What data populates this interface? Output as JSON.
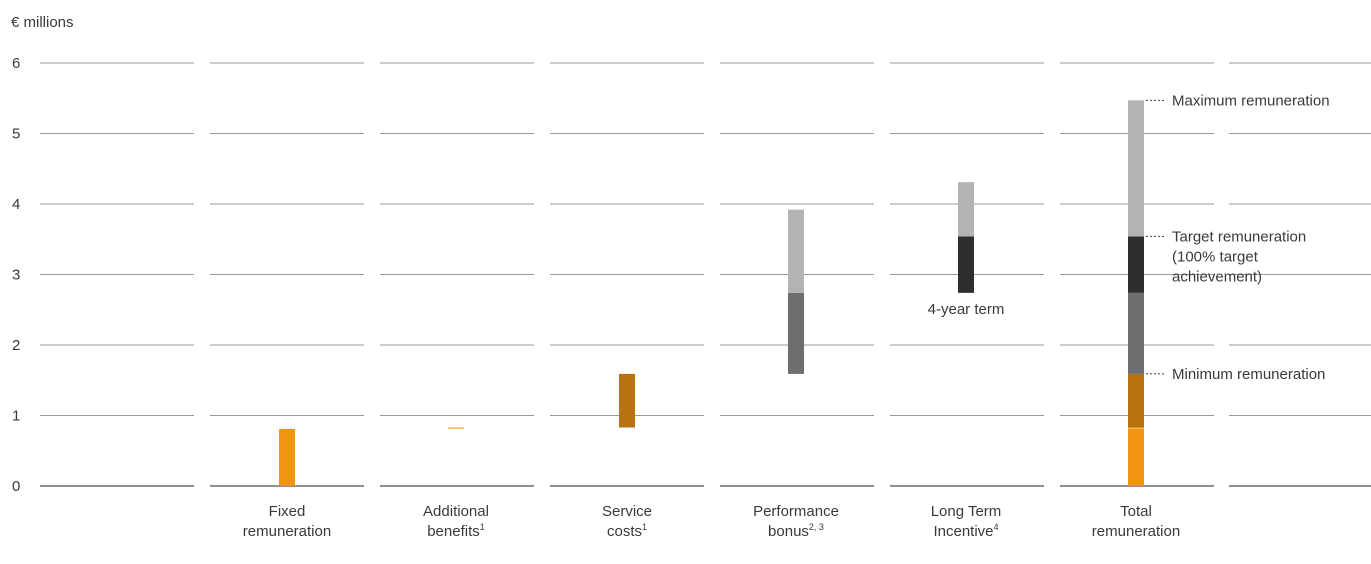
{
  "chart_data": {
    "type": "bar",
    "unit_label": "€ millions",
    "ylim": [
      0,
      6
    ],
    "y_ticks": [
      "0",
      "1",
      "2",
      "3",
      "4",
      "5",
      "6"
    ],
    "grid": true,
    "categories": [
      {
        "lines": [
          "Fixed",
          "remuneration"
        ],
        "sup": ""
      },
      {
        "lines": [
          "Additional",
          "benefits"
        ],
        "sup": "1"
      },
      {
        "lines": [
          "Service",
          "costs"
        ],
        "sup": "1"
      },
      {
        "lines": [
          "Performance",
          "bonus"
        ],
        "sup": "2, 3"
      },
      {
        "lines": [
          "Long Term",
          "Incentive"
        ],
        "sup": "4"
      },
      {
        "lines": [
          "Total",
          "remuneration"
        ],
        "sup": ""
      }
    ],
    "bars": [
      {
        "category": 0,
        "segments": [
          {
            "from": 0,
            "to": 0.81,
            "color": "#f39314"
          }
        ]
      },
      {
        "category": 1,
        "segments": [
          {
            "from": 0.81,
            "to": 0.83,
            "color": "#f6b84a"
          }
        ]
      },
      {
        "category": 2,
        "segments": [
          {
            "from": 0.83,
            "to": 1.59,
            "color": "#b5720f"
          }
        ]
      },
      {
        "category": 3,
        "segments": [
          {
            "from": 1.59,
            "to": 2.74,
            "color": "#6e6e6e"
          },
          {
            "from": 2.74,
            "to": 3.92,
            "color": "#b3b3b3"
          }
        ]
      },
      {
        "category": 4,
        "segments": [
          {
            "from": 2.74,
            "to": 3.54,
            "color": "#2e2e2e"
          },
          {
            "from": 3.54,
            "to": 4.31,
            "color": "#b3b3b3"
          }
        ]
      },
      {
        "category": 5,
        "segments": [
          {
            "from": 0,
            "to": 0.81,
            "color": "#f39314"
          },
          {
            "from": 0.81,
            "to": 0.83,
            "color": "#f6b84a"
          },
          {
            "from": 0.83,
            "to": 1.59,
            "color": "#b5720f"
          },
          {
            "from": 1.59,
            "to": 2.74,
            "color": "#6e6e6e"
          },
          {
            "from": 2.74,
            "to": 3.54,
            "color": "#2e2e2e"
          },
          {
            "from": 3.54,
            "to": 5.47,
            "color": "#b3b3b3"
          }
        ]
      }
    ],
    "annotations": [
      {
        "category": 4,
        "y": 2.74,
        "text": "4-year term"
      }
    ],
    "callouts": [
      {
        "y": 5.47,
        "lines": [
          "Maximum remuneration"
        ]
      },
      {
        "y": 3.54,
        "lines": [
          "Target remuneration",
          "(100% target",
          "achievement)"
        ]
      },
      {
        "y": 1.59,
        "lines": [
          "Minimum remuneration"
        ]
      }
    ]
  }
}
